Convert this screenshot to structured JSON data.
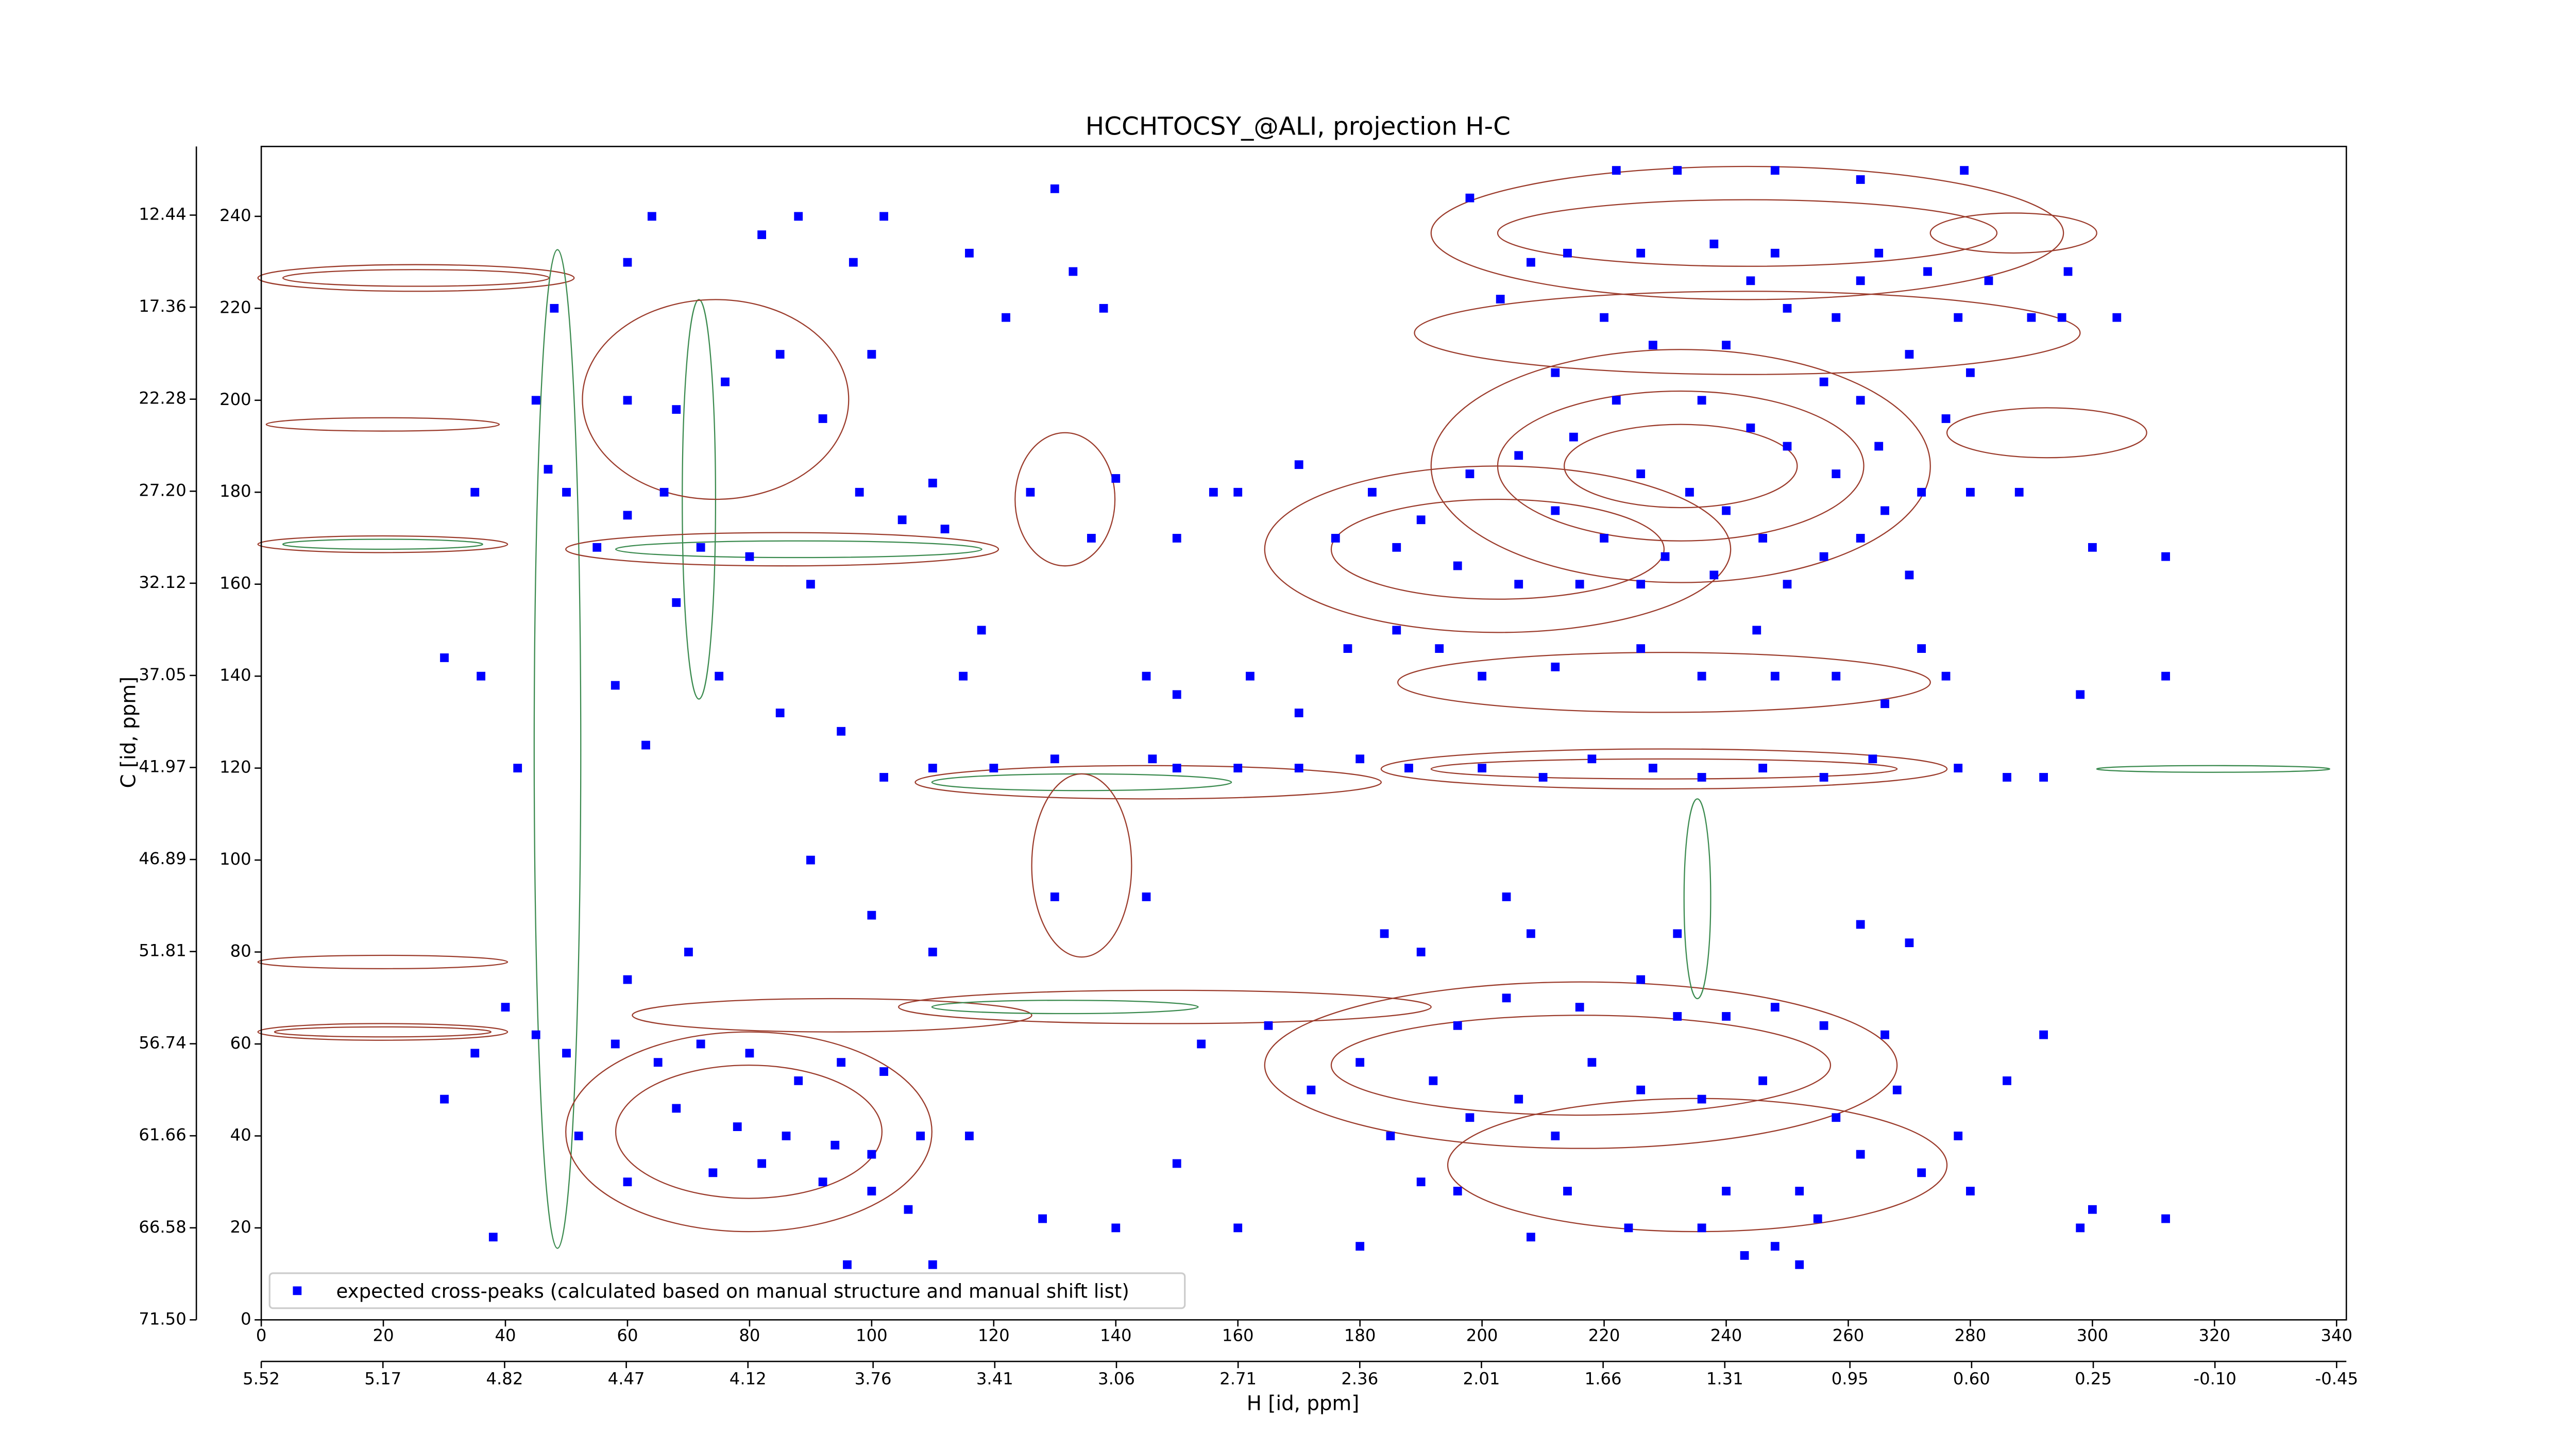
{
  "chart_data": {
    "type": "scatter",
    "title": "HCCHTOCSY_@ALI, projection H-C",
    "xlabel": "H [id, ppm]",
    "ylabel": "C [id, ppm]",
    "xlim": [
      0,
      341.6
    ],
    "ylim": [
      0,
      255.2
    ],
    "xticks": [
      0,
      20,
      40,
      60,
      80,
      100,
      120,
      140,
      160,
      180,
      200,
      220,
      240,
      260,
      280,
      300,
      320,
      340
    ],
    "yticks": [
      0,
      20,
      40,
      60,
      80,
      100,
      120,
      140,
      160,
      180,
      200,
      220,
      240
    ],
    "x2lim": [
      5.52,
      -0.478
    ],
    "x2ticks": [
      5.52,
      5.17,
      4.82,
      4.47,
      4.12,
      3.76,
      3.41,
      3.06,
      2.71,
      2.36,
      2.01,
      1.66,
      1.31,
      0.95,
      {
        "value": 0.6,
        "label": "0.60"
      },
      0.25,
      {
        "value": -0.1,
        "label": "-0.10"
      },
      -0.45
    ],
    "y2lim": [
      71.5,
      8.77
    ],
    "y2ticks": [
      {
        "value": 71.5,
        "label": "71.50"
      },
      66.58,
      61.66,
      56.74,
      51.81,
      46.89,
      41.97,
      37.05,
      32.12,
      {
        "value": 27.2,
        "label": "27.20"
      },
      22.28,
      17.36,
      12.44
    ],
    "legend": "lower left",
    "series": [
      {
        "name": "expected cross-peaks (calculated based on manual structure and manual shift list)",
        "color": "#0000ff",
        "x": [
          232,
          248,
          222,
          198,
          262,
          279,
          238,
          208,
          226,
          248,
          265,
          214,
          262,
          273,
          296,
          283,
          244,
          250,
          258,
          220,
          203,
          278,
          290,
          304,
          228,
          240,
          256,
          262,
          270,
          280,
          295,
          212,
          222,
          236,
          244,
          250,
          265,
          276,
          215,
          206,
          198,
          226,
          234,
          240,
          258,
          266,
          272,
          280,
          288,
          212,
          220,
          230,
          246,
          256,
          262,
          270,
          182,
          190,
          170,
          176,
          186,
          196,
          206,
          216,
          226,
          238,
          250,
          193,
          200,
          212,
          226,
          236,
          248,
          258,
          266,
          272,
          276,
          300,
          312,
          298,
          312,
          245,
          186,
          178,
          200,
          210,
          218,
          228,
          236,
          246,
          256,
          264,
          278,
          286,
          292,
          146,
          150,
          160,
          170,
          180,
          188,
          45,
          50,
          47,
          55,
          60,
          66,
          72,
          80,
          90,
          68,
          75,
          85,
          95,
          102,
          110,
          58,
          63,
          42,
          36,
          30,
          35,
          60,
          68,
          76,
          85,
          92,
          100,
          98,
          105,
          112,
          110,
          118,
          115,
          120,
          130,
          48,
          60,
          64,
          82,
          88,
          97,
          102,
          116,
          130,
          122,
          133,
          138,
          140,
          126,
          136,
          150,
          160,
          156,
          145,
          150,
          162,
          170,
          90,
          130,
          145,
          100,
          110,
          70,
          60,
          45,
          40,
          50,
          58,
          65,
          72,
          80,
          88,
          95,
          102,
          68,
          78,
          86,
          94,
          100,
          108,
          116,
          82,
          92,
          100,
          106,
          74,
          52,
          60,
          35,
          30,
          38,
          128,
          140,
          150,
          160,
          154,
          165,
          172,
          180,
          192,
          198,
          206,
          212,
          218,
          226,
          236,
          246,
          258,
          262,
          268,
          272,
          280,
          278,
          292,
          286,
          300,
          312,
          252,
          240,
          236,
          224,
          214,
          208,
          196,
          190,
          180,
          185,
          196,
          204,
          216,
          226,
          232,
          240,
          248,
          256,
          266,
          270,
          262,
          208,
          204,
          232,
          190,
          184,
          298,
          243,
          252,
          248,
          255,
          110,
          96
        ],
        "values": [
          250,
          250,
          250,
          244,
          248,
          250,
          234,
          230,
          232,
          232,
          232,
          232,
          226,
          228,
          228,
          226,
          226,
          220,
          218,
          218,
          222,
          218,
          218,
          218,
          212,
          212,
          204,
          200,
          210,
          206,
          218,
          206,
          200,
          200,
          194,
          190,
          190,
          196,
          192,
          188,
          184,
          184,
          180,
          176,
          184,
          176,
          180,
          180,
          180,
          176,
          170,
          166,
          170,
          166,
          170,
          162,
          180,
          174,
          186,
          170,
          168,
          164,
          160,
          160,
          160,
          162,
          160,
          146,
          140,
          142,
          146,
          140,
          140,
          140,
          134,
          146,
          140,
          168,
          166,
          136,
          140,
          150,
          150,
          146,
          120,
          118,
          122,
          120,
          118,
          120,
          118,
          122,
          120,
          118,
          118,
          122,
          120,
          120,
          120,
          122,
          120,
          200,
          180,
          185,
          168,
          175,
          180,
          168,
          166,
          160,
          156,
          140,
          132,
          128,
          118,
          120,
          138,
          125,
          120,
          140,
          144,
          180,
          200,
          198,
          204,
          210,
          196,
          210,
          180,
          174,
          172,
          182,
          150,
          140,
          120,
          122,
          220,
          230,
          240,
          236,
          240,
          230,
          240,
          232,
          246,
          218,
          228,
          220,
          183,
          180,
          170,
          170,
          180,
          180,
          140,
          136,
          140,
          132,
          100,
          92,
          92,
          88,
          80,
          80,
          74,
          62,
          68,
          58,
          60,
          56,
          60,
          58,
          52,
          56,
          54,
          46,
          42,
          40,
          38,
          36,
          40,
          40,
          34,
          30,
          28,
          24,
          32,
          40,
          30,
          58,
          48,
          18,
          22,
          20,
          34,
          20,
          60,
          64,
          50,
          56,
          52,
          44,
          48,
          40,
          56,
          50,
          48,
          52,
          44,
          36,
          50,
          32,
          28,
          40,
          62,
          52,
          24,
          22,
          28,
          28,
          20,
          20,
          28,
          18,
          28,
          30,
          16,
          40,
          64,
          70,
          68,
          74,
          66,
          66,
          68,
          64,
          62,
          82,
          86,
          84,
          92,
          84,
          80,
          84,
          20,
          14,
          12,
          16,
          22,
          12,
          12
        ]
      }
    ]
  }
}
